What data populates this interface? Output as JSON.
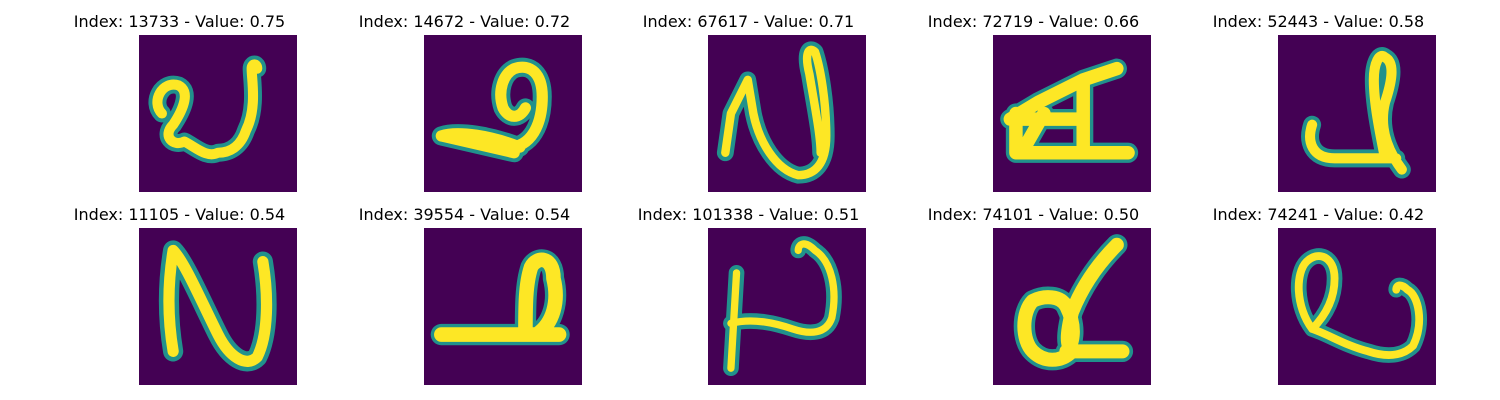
{
  "figure": {
    "colormap": "viridis",
    "background_color": "#440154",
    "stroke_color": "#fde725",
    "edge_color": "#21918c",
    "panels": [
      {
        "title": "Index: 13733 - Value: 0.75",
        "glyph": "glyph-a"
      },
      {
        "title": "Index: 14672 - Value: 0.72",
        "glyph": "glyph-b"
      },
      {
        "title": "Index: 67617 - Value: 0.71",
        "glyph": "glyph-c"
      },
      {
        "title": "Index: 72719 - Value: 0.66",
        "glyph": "glyph-d"
      },
      {
        "title": "Index: 52443 - Value: 0.58",
        "glyph": "glyph-e"
      },
      {
        "title": "Index: 11105 - Value: 0.54",
        "glyph": "glyph-f"
      },
      {
        "title": "Index: 39554 - Value: 0.54",
        "glyph": "glyph-g"
      },
      {
        "title": "Index: 101338 - Value: 0.51",
        "glyph": "glyph-h"
      },
      {
        "title": "Index: 74101 - Value: 0.50",
        "glyph": "glyph-i"
      },
      {
        "title": "Index: 74241 - Value: 0.42",
        "glyph": "glyph-j"
      }
    ]
  }
}
